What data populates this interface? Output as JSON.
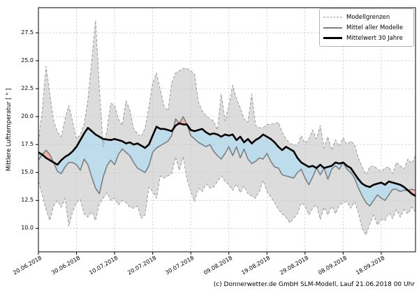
{
  "figure": {
    "footer": "(c) Donnerwetter.de GmbH SLM-Modell, Lauf 21.06.2018 00 Uhr"
  },
  "legend": {
    "position": "upper right",
    "items": [
      {
        "label": "Modellgrenzen",
        "style": "dashed",
        "color": "#999999"
      },
      {
        "label": "Mittel aller Modelle",
        "style": "solid",
        "color": "#7f7f7f"
      },
      {
        "label": "Mittelwert 30 Jahre",
        "style": "thick",
        "color": "#000000"
      }
    ]
  },
  "chart_data": {
    "type": "line",
    "title": "",
    "xlabel": "",
    "ylabel": "Mittlere Lufttemperatur [ ° ]",
    "start_date": "20.06.2018",
    "end_date": "27.09.2018",
    "days": 100,
    "ylim": [
      7.9,
      29.75
    ],
    "grid": true,
    "x_ticks": [
      {
        "day": 0,
        "label": "20.06.2018"
      },
      {
        "day": 10,
        "label": "30.06.2018"
      },
      {
        "day": 20,
        "label": "10.07.2018"
      },
      {
        "day": 30,
        "label": "20.07.2018"
      },
      {
        "day": 40,
        "label": "30.07.2018"
      },
      {
        "day": 50,
        "label": "09.08.2018"
      },
      {
        "day": 60,
        "label": "19.08.2018"
      },
      {
        "day": 70,
        "label": "29.08.2018"
      },
      {
        "day": 80,
        "label": "08.09.2018"
      },
      {
        "day": 90,
        "label": "18.09.2018"
      }
    ],
    "y_ticks": [
      {
        "value": 10.0,
        "label": "10.0"
      },
      {
        "value": 12.5,
        "label": "12.5"
      },
      {
        "value": 15.0,
        "label": "15.0"
      },
      {
        "value": 17.5,
        "label": "17.5"
      },
      {
        "value": 20.0,
        "label": "20.0"
      },
      {
        "value": 22.5,
        "label": "22.5"
      },
      {
        "value": 25.0,
        "label": "25.0"
      },
      {
        "value": 27.5,
        "label": "27.5"
      }
    ],
    "colors": {
      "band_fill": "#dcdcdc",
      "band_edge": "#999999",
      "model_mean_line": "#7f7f7f",
      "climate_mean_line": "#000000",
      "below_normal_fill": "#bddcec",
      "above_normal_fill": "#f2b5a8",
      "grid": "#c9c9c9"
    },
    "series": [
      {
        "name": "Modellgrenzen (obere Grenze)",
        "values": [
          17.8,
          20.5,
          24.5,
          22.0,
          19.6,
          18.6,
          18.2,
          19.8,
          21.0,
          19.5,
          18.0,
          18.4,
          19.3,
          21.5,
          25.0,
          28.6,
          22.5,
          17.3,
          18.8,
          21.2,
          21.0,
          19.8,
          19.2,
          21.4,
          20.6,
          18.9,
          18.5,
          18.2,
          19.0,
          20.8,
          23.0,
          23.9,
          22.4,
          20.9,
          20.5,
          23.0,
          23.9,
          24.1,
          24.3,
          24.3,
          24.1,
          23.8,
          21.3,
          20.5,
          20.1,
          19.8,
          19.6,
          18.8,
          22.0,
          19.6,
          21.0,
          22.8,
          21.6,
          20.8,
          19.8,
          19.5,
          22.0,
          19.2,
          19.0,
          19.0,
          19.3,
          19.3,
          19.4,
          19.5,
          18.6,
          18.0,
          17.6,
          17.5,
          17.4,
          18.3,
          17.6,
          18.0,
          18.8,
          18.0,
          19.2,
          17.2,
          18.2,
          17.0,
          17.9,
          17.3,
          18.1,
          17.5,
          17.8,
          17.5,
          16.3,
          15.5,
          14.8,
          15.5,
          15.6,
          15.3,
          15.1,
          15.4,
          15.5,
          14.9,
          15.9,
          15.6,
          15.3,
          16.2,
          15.8,
          16.5
        ]
      },
      {
        "name": "Modellgrenzen (untere Grenze)",
        "values": [
          14.2,
          13.0,
          11.7,
          10.7,
          12.0,
          12.5,
          11.9,
          12.7,
          10.2,
          11.5,
          12.3,
          12.6,
          11.3,
          11.0,
          11.5,
          10.7,
          12.2,
          12.7,
          13.2,
          12.5,
          12.7,
          12.1,
          12.5,
          12.3,
          11.9,
          11.8,
          12.0,
          10.9,
          11.2,
          13.7,
          13.3,
          12.7,
          14.7,
          14.5,
          14.7,
          14.9,
          16.4,
          15.2,
          16.4,
          14.4,
          13.3,
          12.4,
          13.6,
          13.3,
          14.0,
          13.6,
          13.7,
          14.2,
          14.7,
          14.2,
          13.9,
          13.4,
          14.0,
          13.2,
          13.8,
          13.1,
          12.9,
          12.7,
          13.3,
          14.3,
          13.3,
          12.8,
          12.3,
          11.7,
          11.3,
          11.0,
          10.5,
          10.9,
          11.3,
          12.3,
          12.0,
          11.2,
          11.8,
          12.1,
          10.8,
          11.9,
          11.2,
          12.0,
          11.3,
          12.1,
          12.3,
          12.4,
          11.8,
          12.4,
          11.4,
          10.0,
          9.4,
          10.4,
          11.2,
          10.3,
          10.8,
          10.7,
          11.4,
          10.9,
          11.7,
          11.0,
          11.7,
          11.3,
          11.9,
          11.5
        ]
      },
      {
        "name": "Mittel aller Modelle",
        "values": [
          16.1,
          16.6,
          17.0,
          16.6,
          15.9,
          15.1,
          14.9,
          15.5,
          15.9,
          15.9,
          15.7,
          15.2,
          16.2,
          15.7,
          14.6,
          13.6,
          13.1,
          14.6,
          15.6,
          16.1,
          15.7,
          16.6,
          17.1,
          16.8,
          16.5,
          15.9,
          15.4,
          15.2,
          15.0,
          15.6,
          16.8,
          17.2,
          17.4,
          17.6,
          17.8,
          18.3,
          19.8,
          19.4,
          20.0,
          19.3,
          18.3,
          18.0,
          17.7,
          17.5,
          17.3,
          17.5,
          16.9,
          16.5,
          16.2,
          16.7,
          17.3,
          16.5,
          17.3,
          16.3,
          17.1,
          16.2,
          15.8,
          16.0,
          16.3,
          16.2,
          16.7,
          16.0,
          15.5,
          15.4,
          14.8,
          14.7,
          14.6,
          14.5,
          15.0,
          15.3,
          14.5,
          13.9,
          14.6,
          15.4,
          14.8,
          15.4,
          14.4,
          15.3,
          15.6,
          15.3,
          15.9,
          15.3,
          15.0,
          14.5,
          13.6,
          12.9,
          12.3,
          12.0,
          12.5,
          13.0,
          12.7,
          12.5,
          13.0,
          13.5,
          13.5,
          13.3,
          13.4,
          13.4,
          13.5,
          13.4
        ]
      },
      {
        "name": "Mittelwert 30 Jahre",
        "values": [
          16.8,
          16.6,
          16.3,
          16.1,
          15.9,
          15.7,
          16.1,
          16.4,
          16.6,
          16.9,
          17.3,
          17.9,
          18.5,
          19.0,
          18.7,
          18.4,
          18.2,
          18.0,
          17.95,
          17.9,
          18.0,
          17.9,
          17.8,
          17.6,
          17.7,
          17.5,
          17.6,
          17.4,
          17.2,
          17.5,
          18.3,
          19.1,
          18.9,
          18.9,
          18.8,
          18.7,
          19.2,
          19.4,
          19.3,
          19.3,
          18.8,
          18.7,
          18.8,
          18.9,
          18.6,
          18.4,
          18.5,
          18.4,
          18.2,
          18.4,
          18.3,
          18.4,
          17.9,
          18.2,
          17.7,
          18.0,
          17.6,
          17.9,
          18.1,
          18.4,
          18.2,
          18.0,
          17.7,
          17.3,
          17.0,
          17.3,
          17.1,
          16.9,
          16.3,
          15.9,
          15.7,
          15.5,
          15.6,
          15.4,
          15.7,
          15.4,
          15.5,
          15.6,
          15.9,
          15.8,
          15.9,
          15.6,
          15.4,
          14.9,
          14.4,
          14.0,
          13.8,
          13.7,
          13.9,
          14.0,
          14.1,
          13.9,
          14.2,
          14.1,
          14.0,
          13.9,
          13.7,
          13.4,
          13.1,
          12.9
        ]
      }
    ]
  }
}
